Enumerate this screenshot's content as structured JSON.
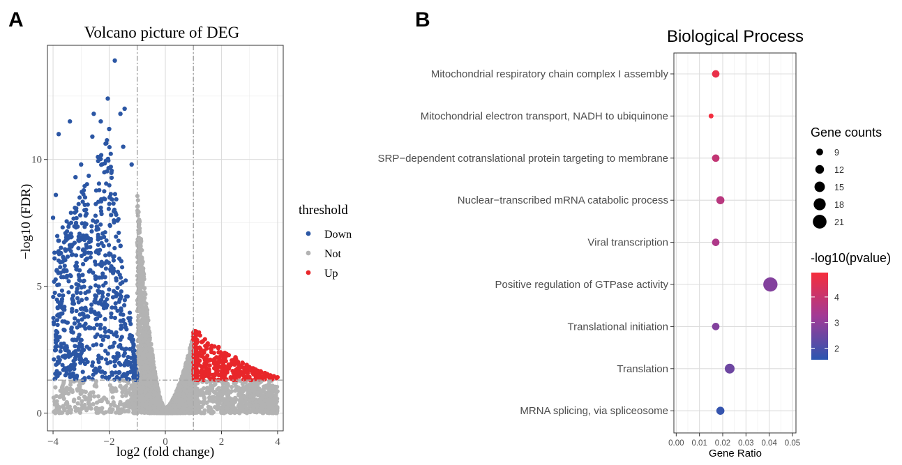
{
  "panels": {
    "a_label": "A",
    "b_label": "B"
  },
  "chart_data": [
    {
      "type": "scatter",
      "title": "Volcano picture of DEG",
      "xlabel": "log2 (fold change)",
      "ylabel": "−log10 (FDR)",
      "xlim": [
        -4.2,
        4.2
      ],
      "ylim": [
        -0.7,
        14.5
      ],
      "x_ticks": [
        -4,
        -2,
        0,
        2,
        4
      ],
      "x_tick_labels": [
        "−4",
        "−2",
        "0",
        "2",
        "4"
      ],
      "y_ticks": [
        0,
        5,
        10
      ],
      "y_tick_labels": [
        "0",
        "5",
        "10"
      ],
      "threshold_lines": {
        "x": [
          -1,
          1
        ],
        "y": 1.3
      },
      "grid": true,
      "legend": {
        "title": "threshold",
        "position": "right",
        "entries": [
          {
            "label": "Down",
            "color": "#2b56a4"
          },
          {
            "label": "Not",
            "color": "#b3b3b3"
          },
          {
            "label": "Up",
            "color": "#e8262a"
          }
        ]
      },
      "highlight_points": {
        "Down": [
          [
            -1.8,
            13.9
          ],
          [
            -2.05,
            12.4
          ],
          [
            -2.55,
            11.8
          ],
          [
            -3.4,
            11.5
          ],
          [
            -3.8,
            11.0
          ],
          [
            -1.6,
            11.8
          ],
          [
            -2.3,
            11.5
          ],
          [
            -1.45,
            12.0
          ],
          [
            -2.0,
            11.2
          ],
          [
            -2.6,
            10.9
          ],
          [
            -3.0,
            9.8
          ],
          [
            -3.2,
            9.3
          ],
          [
            -3.9,
            8.6
          ],
          [
            -4.0,
            7.7
          ],
          [
            -1.5,
            10.5
          ],
          [
            -1.2,
            9.8
          ],
          [
            -2.4,
            10.1
          ]
        ],
        "Up": [
          [
            1.0,
            2.9
          ],
          [
            1.3,
            2.8
          ],
          [
            1.9,
            2.6
          ],
          [
            2.5,
            2.2
          ],
          [
            2.9,
            1.9
          ],
          [
            3.5,
            1.45
          ],
          [
            3.65,
            1.45
          ],
          [
            2.7,
            1.6
          ],
          [
            1.6,
            2.1
          ],
          [
            2.2,
            1.8
          ],
          [
            3.1,
            1.6
          ],
          [
            1.1,
            2.0
          ]
        ]
      }
    },
    {
      "type": "scatter",
      "title": "Biological Process",
      "xlabel": "Gene Ratio",
      "ylabel": "",
      "xlim": [
        -0.001,
        0.0515
      ],
      "x_ticks": [
        0.0,
        0.01,
        0.02,
        0.03,
        0.04,
        0.05
      ],
      "x_tick_labels": [
        "0.00",
        "0.01",
        "0.02",
        "0.03",
        "0.04",
        "0.05"
      ],
      "grid": true,
      "categories": [
        "Mitochondrial respiratory chain complex I assembly",
        "Mitochondrial electron transport, NADH to ubiquinone",
        "SRP−dependent cotranslational protein targeting to membrane",
        "Nuclear−transcribed mRNA catabolic process",
        "Viral transcription",
        "Positive regulation of GTPase activity",
        "Translational initiation",
        "Translation",
        "MRNA splicing, via spliceosome"
      ],
      "gene_ratio": [
        0.017,
        0.015,
        0.017,
        0.019,
        0.017,
        0.0405,
        0.017,
        0.023,
        0.019
      ],
      "gene_counts": [
        10,
        6,
        10,
        11,
        10,
        22,
        10,
        14,
        11
      ],
      "neg_log10_pvalue": [
        4.7,
        4.9,
        3.9,
        3.7,
        3.5,
        2.8,
        2.8,
        2.5,
        1.7
      ],
      "size_legend": {
        "title": "Gene counts",
        "values": [
          9,
          12,
          15,
          18,
          21
        ]
      },
      "color_legend": {
        "title": "-log10(pvalue)",
        "ticks": [
          2,
          3,
          4
        ],
        "tick_labels": [
          "2",
          "3",
          "4"
        ],
        "range": [
          1.55,
          4.95
        ],
        "low_color": "#2b56b0",
        "mid_color": "#a23a96",
        "high_color": "#f52e3c"
      }
    }
  ]
}
